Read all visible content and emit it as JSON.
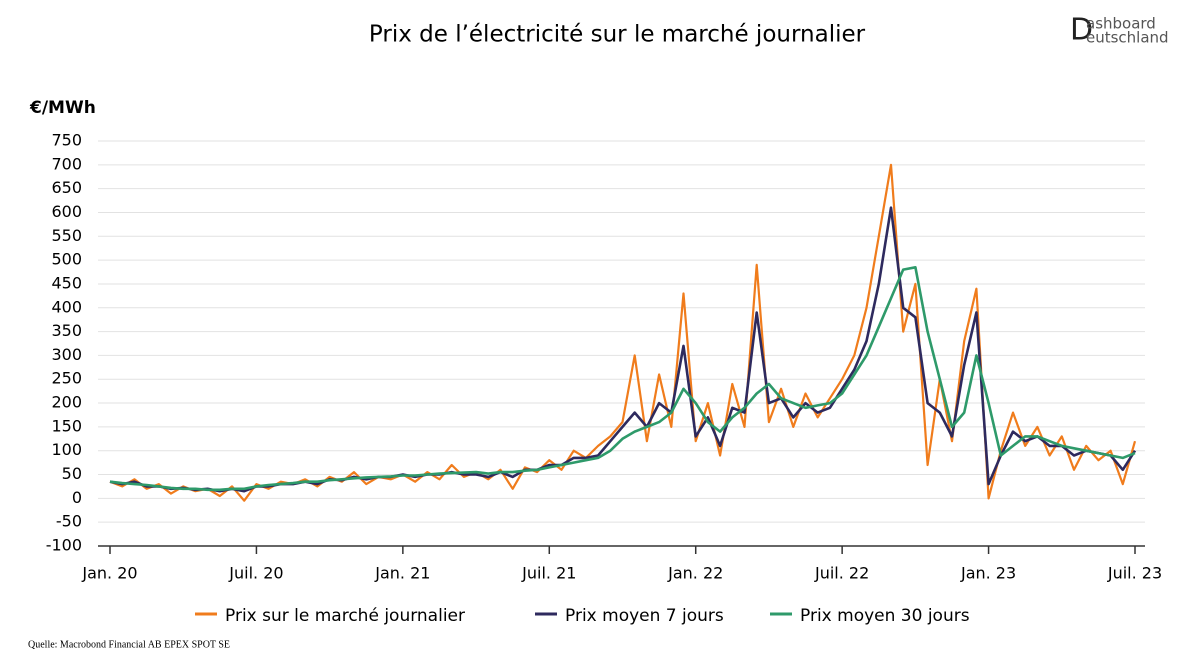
{
  "chart_data": {
    "type": "line",
    "title": "Prix de l’électricité sur le marché journalier",
    "y_label": "€/MWh",
    "source": "Quelle: Macrobond Financial AB EPEX SPOT SE",
    "logo": {
      "initial": "D",
      "line1": "ashboard",
      "line2": "eutschland"
    },
    "grid": true,
    "xlim": [
      0,
      42
    ],
    "xticks": [
      {
        "value": 0,
        "label": "Jan. 20"
      },
      {
        "value": 6,
        "label": "Juil. 20"
      },
      {
        "value": 12,
        "label": "Jan. 21"
      },
      {
        "value": 18,
        "label": "Juil. 21"
      },
      {
        "value": 24,
        "label": "Jan. 22"
      },
      {
        "value": 30,
        "label": "Juil. 22"
      },
      {
        "value": 36,
        "label": "Jan. 23"
      },
      {
        "value": 42,
        "label": "Juil. 23"
      }
    ],
    "ylim": [
      -100,
      750
    ],
    "yticks": [
      -100,
      -50,
      0,
      50,
      100,
      150,
      200,
      250,
      300,
      350,
      400,
      450,
      500,
      550,
      600,
      650,
      700,
      750
    ],
    "x": [
      0,
      0.5,
      1,
      1.5,
      2,
      2.5,
      3,
      3.5,
      4,
      4.5,
      5,
      5.5,
      6,
      6.5,
      7,
      7.5,
      8,
      8.5,
      9,
      9.5,
      10,
      10.5,
      11,
      11.5,
      12,
      12.5,
      13,
      13.5,
      14,
      14.5,
      15,
      15.5,
      16,
      16.5,
      17,
      17.5,
      18,
      18.5,
      19,
      19.5,
      20,
      20.5,
      21,
      21.5,
      22,
      22.5,
      23,
      23.5,
      24,
      24.5,
      25,
      25.5,
      26,
      26.5,
      27,
      27.5,
      28,
      28.5,
      29,
      29.5,
      30,
      30.5,
      31,
      31.5,
      32,
      32.5,
      33,
      33.5,
      34,
      34.5,
      35,
      35.5,
      36,
      36.5,
      37,
      37.5,
      38,
      38.5,
      39,
      39.5,
      40,
      40.5,
      41,
      41.5,
      42
    ],
    "series": [
      {
        "name": "Prix sur le marché journalier",
        "color": "#f07c1c",
        "width": 2.2,
        "values": [
          35,
          25,
          40,
          20,
          30,
          10,
          25,
          15,
          20,
          5,
          25,
          -5,
          30,
          20,
          35,
          30,
          40,
          25,
          45,
          35,
          55,
          30,
          45,
          40,
          50,
          35,
          55,
          40,
          70,
          45,
          55,
          40,
          60,
          20,
          65,
          55,
          80,
          60,
          100,
          85,
          110,
          130,
          160,
          300,
          120,
          260,
          150,
          430,
          120,
          200,
          90,
          240,
          150,
          490,
          160,
          230,
          150,
          220,
          170,
          210,
          250,
          300,
          400,
          550,
          700,
          350,
          450,
          70,
          250,
          120,
          330,
          440,
          0,
          100,
          180,
          110,
          150,
          90,
          130,
          60,
          110,
          80,
          100,
          30,
          120
        ]
      },
      {
        "name": "Prix moyen 7 jours",
        "color": "#2e2a5e",
        "width": 2.6,
        "values": [
          35,
          30,
          35,
          25,
          25,
          20,
          22,
          18,
          20,
          15,
          20,
          15,
          25,
          25,
          30,
          30,
          35,
          30,
          40,
          38,
          45,
          40,
          45,
          45,
          50,
          45,
          50,
          50,
          55,
          50,
          50,
          45,
          55,
          45,
          60,
          60,
          70,
          70,
          85,
          85,
          90,
          120,
          150,
          180,
          150,
          200,
          180,
          320,
          130,
          170,
          110,
          190,
          180,
          390,
          200,
          210,
          170,
          200,
          180,
          190,
          230,
          270,
          330,
          450,
          610,
          400,
          380,
          200,
          180,
          130,
          280,
          390,
          30,
          90,
          140,
          120,
          130,
          110,
          110,
          90,
          100,
          95,
          90,
          60,
          100
        ]
      },
      {
        "name": "Prix moyen 30 jours",
        "color": "#2e9a6a",
        "width": 2.6,
        "values": [
          35,
          32,
          30,
          28,
          25,
          22,
          20,
          20,
          18,
          18,
          20,
          20,
          25,
          28,
          30,
          32,
          35,
          35,
          38,
          40,
          42,
          44,
          45,
          46,
          48,
          48,
          50,
          52,
          53,
          54,
          55,
          52,
          55,
          55,
          58,
          60,
          65,
          70,
          75,
          80,
          85,
          100,
          125,
          140,
          150,
          160,
          180,
          230,
          200,
          160,
          140,
          170,
          190,
          220,
          240,
          210,
          200,
          190,
          195,
          200,
          220,
          260,
          300,
          360,
          420,
          480,
          485,
          350,
          250,
          150,
          180,
          300,
          200,
          90,
          110,
          130,
          130,
          120,
          110,
          105,
          100,
          95,
          90,
          85,
          95
        ]
      }
    ]
  }
}
